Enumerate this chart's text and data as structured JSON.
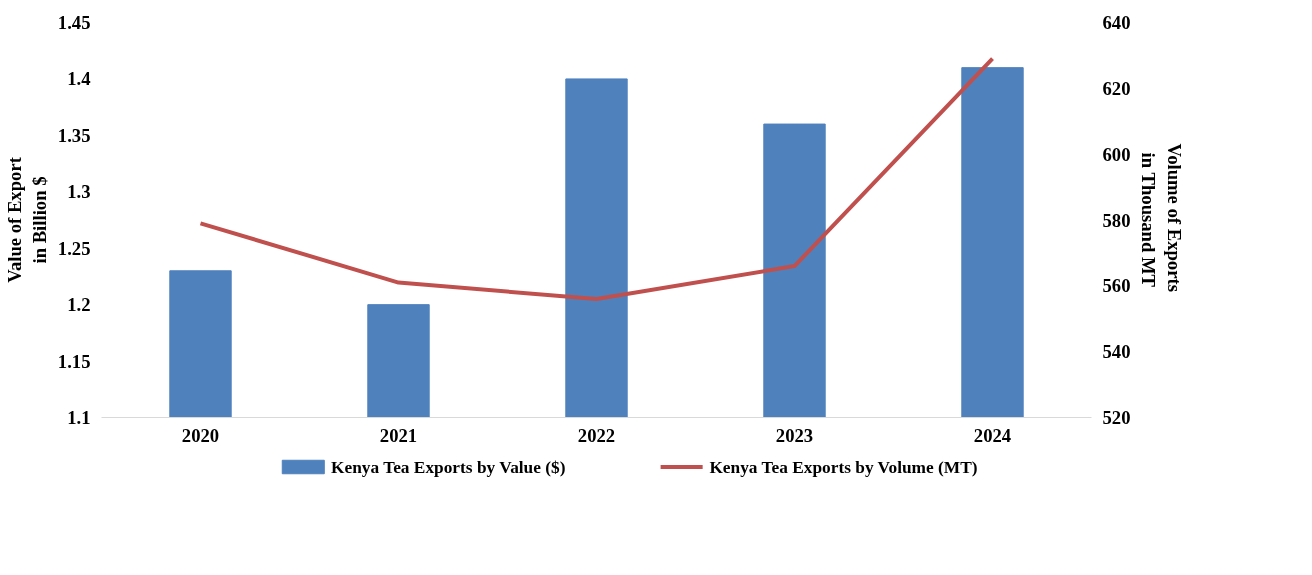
{
  "chart_data": {
    "type": "bar",
    "categories": [
      "2020",
      "2021",
      "2022",
      "2023",
      "2024"
    ],
    "ylabel": "Value of Export in Billion $",
    "y2label": "Volume of Exports  in Thousand MT",
    "ylim": [
      1.1,
      1.45
    ],
    "yticks": [
      1.1,
      1.15,
      1.2,
      1.25,
      1.3,
      1.35,
      1.4,
      1.45
    ],
    "y2lim": [
      520,
      640
    ],
    "y2ticks": [
      520,
      540,
      560,
      580,
      600,
      620,
      640
    ],
    "series": [
      {
        "name": "Kenya Tea Exports by Value ($)",
        "type": "bar",
        "color": "#4f81bd",
        "values": [
          1.23,
          1.2,
          1.4,
          1.36,
          1.41
        ]
      },
      {
        "name": "Kenya Tea Exports by Volume (MT)",
        "type": "line",
        "axis": "y2",
        "color": "#c0504d",
        "values": [
          579,
          561,
          556,
          566,
          629
        ]
      }
    ],
    "legend": "bottom",
    "grid": false
  }
}
